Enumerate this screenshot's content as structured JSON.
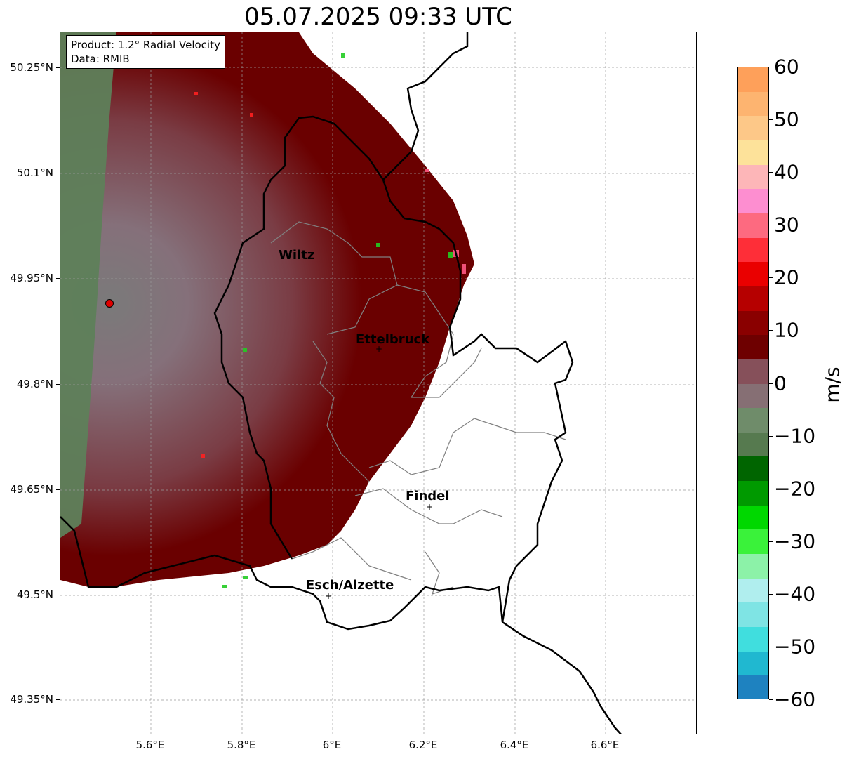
{
  "title": "05.07.2025 09:33 UTC",
  "info": {
    "product": "Product: 1.2° Radial Velocity",
    "data_source": "Data: RMIB"
  },
  "axes": {
    "y_ticks": [
      "50.25°N",
      "50.1°N",
      "49.95°N",
      "49.8°N",
      "49.65°N",
      "49.5°N",
      "49.35°N"
    ],
    "x_ticks": [
      "5.6°E",
      "5.8°E",
      "6°E",
      "6.2°E",
      "6.4°E",
      "6.6°E"
    ]
  },
  "cities": [
    {
      "name": "Wiltz"
    },
    {
      "name": "Ettelbruck"
    },
    {
      "name": "Findel"
    },
    {
      "name": "Esch/Alzette"
    }
  ],
  "colorbar": {
    "label": "m/s",
    "ticks": [
      "60",
      "50",
      "40",
      "30",
      "20",
      "10",
      "0",
      "−10",
      "−20",
      "−30",
      "−40",
      "−50",
      "−60"
    ],
    "colors": [
      "#fea05a",
      "#fdb470",
      "#fdc888",
      "#fde29a",
      "#fdb6b8",
      "#fd8ed0",
      "#fd6a80",
      "#fe2e38",
      "#ea0000",
      "#b60000",
      "#8a0000",
      "#6e0000",
      "#86505a",
      "#866f74",
      "#6f8c6a",
      "#567a4f",
      "#006500",
      "#009a00",
      "#00d800",
      "#3af23a",
      "#8cf2a8",
      "#b0eeee",
      "#7fe4e4",
      "#40dede",
      "#20b8d0",
      "#1e82c0"
    ]
  },
  "radar_site": {
    "name": "radar-site"
  }
}
